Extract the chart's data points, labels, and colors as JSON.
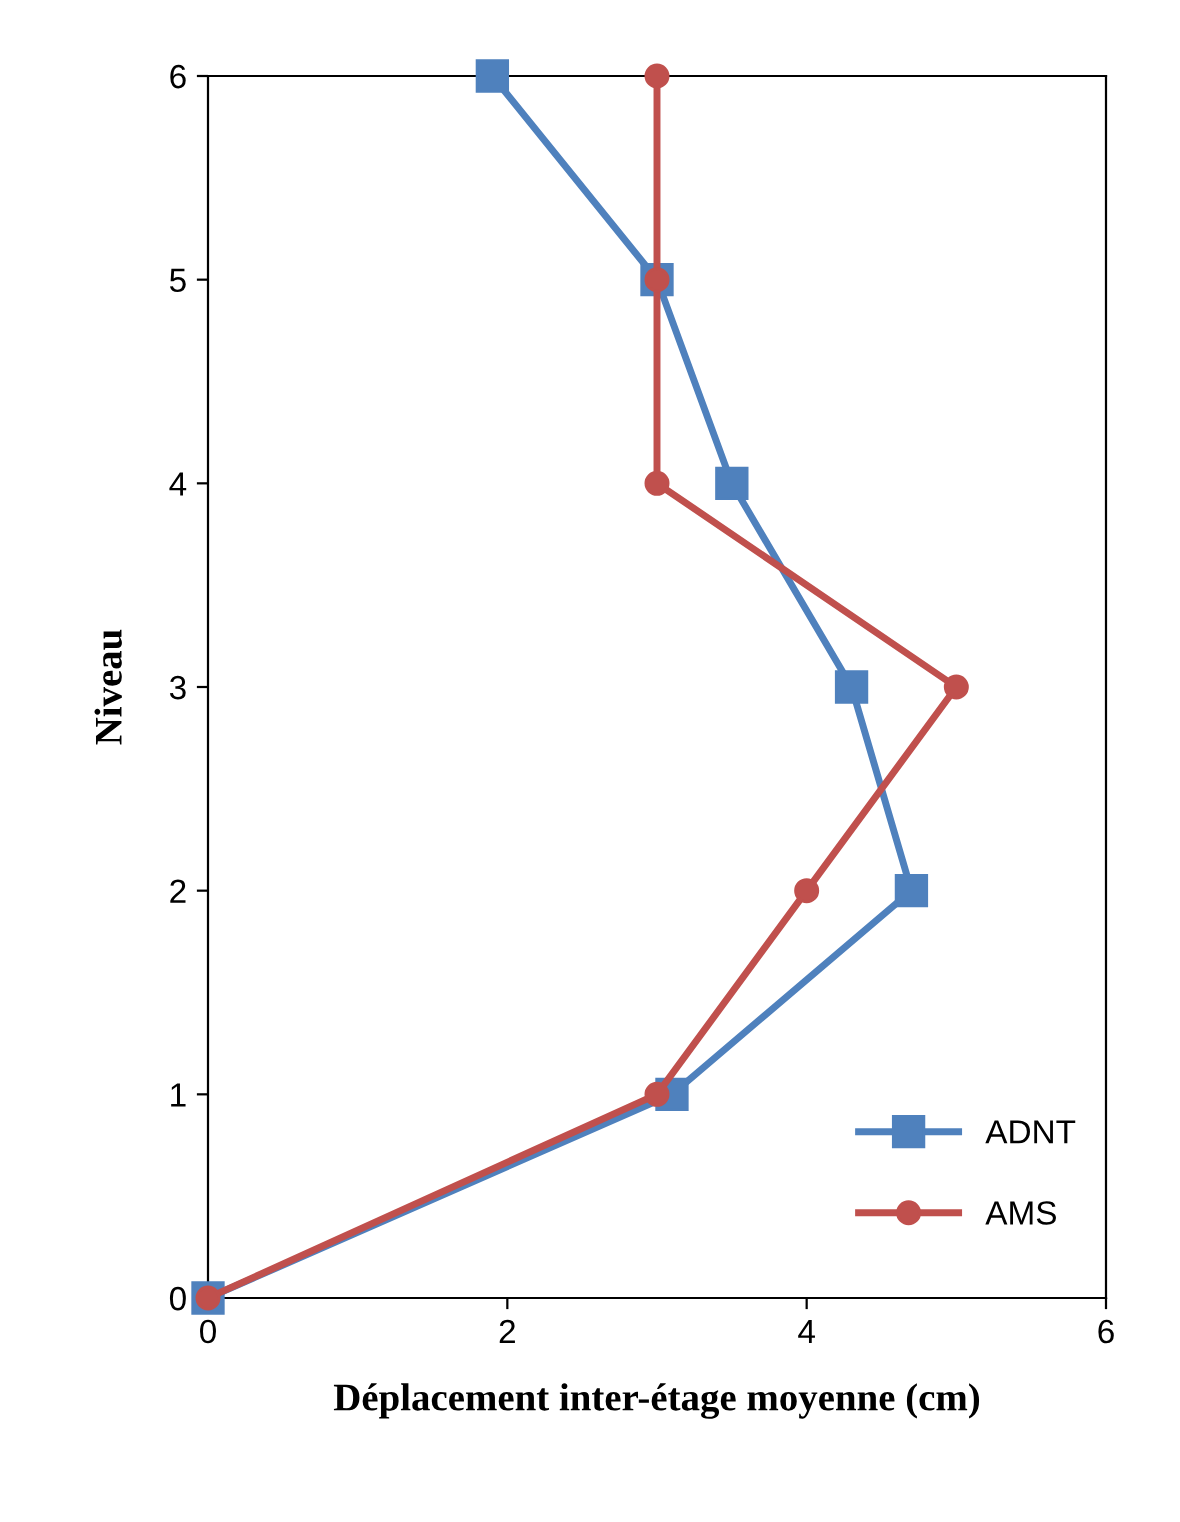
{
  "chart_data": {
    "type": "line",
    "xlabel": "Déplacement inter-étage moyenne (cm)",
    "ylabel": "Niveau",
    "series": [
      {
        "name": "ADNT",
        "color": "#4f81bd",
        "marker": "square",
        "x": [
          0,
          3.1,
          4.7,
          4.3,
          3.5,
          3.0,
          1.9
        ],
        "values": [
          0,
          1,
          2,
          3,
          4,
          5,
          6
        ]
      },
      {
        "name": "AMS",
        "color": "#c0504d",
        "marker": "circle",
        "x": [
          0,
          3.0,
          4.0,
          5.0,
          3.0,
          3.0,
          3.0
        ],
        "values": [
          0,
          1,
          2,
          3,
          4,
          5,
          6
        ]
      }
    ],
    "xlim": [
      0,
      6
    ],
    "xticks": [
      0,
      2,
      4,
      6
    ],
    "ylim": [
      0,
      6
    ],
    "yticks": [
      0,
      1,
      2,
      3,
      4,
      5,
      6
    ],
    "grid": false,
    "legend": "bottom right",
    "line_style": "solid"
  }
}
